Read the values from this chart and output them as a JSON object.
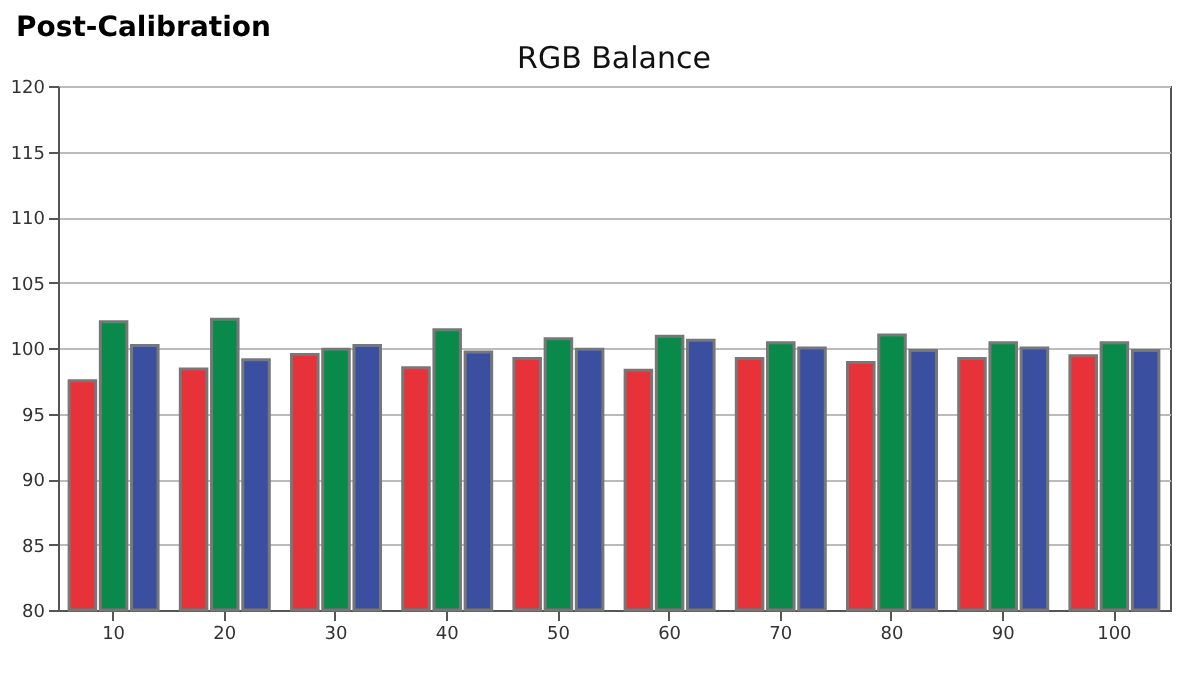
{
  "chart_data": {
    "type": "bar",
    "title": "RGB Balance",
    "annotations": [
      "Post-Calibration"
    ],
    "categories": [
      "10",
      "20",
      "30",
      "40",
      "50",
      "60",
      "70",
      "80",
      "90",
      "100"
    ],
    "series": [
      {
        "color": "#e8323a",
        "values": [
          97.5,
          98.4,
          99.5,
          98.5,
          99.2,
          98.3,
          99.2,
          98.9,
          99.2,
          99.4
        ]
      },
      {
        "color": "#0a8a4a",
        "values": [
          102.0,
          102.2,
          99.9,
          101.4,
          100.7,
          100.9,
          100.4,
          101.0,
          100.4,
          100.4
        ]
      },
      {
        "color": "#3a4fa0",
        "values": [
          100.2,
          99.1,
          100.2,
          99.7,
          99.9,
          100.6,
          100.0,
          99.8,
          100.0,
          99.8
        ]
      }
    ],
    "ylim": [
      80,
      120
    ],
    "yticks": [
      80,
      85,
      90,
      95,
      100,
      105,
      110,
      115,
      120
    ],
    "grid": "y",
    "legend": false
  }
}
